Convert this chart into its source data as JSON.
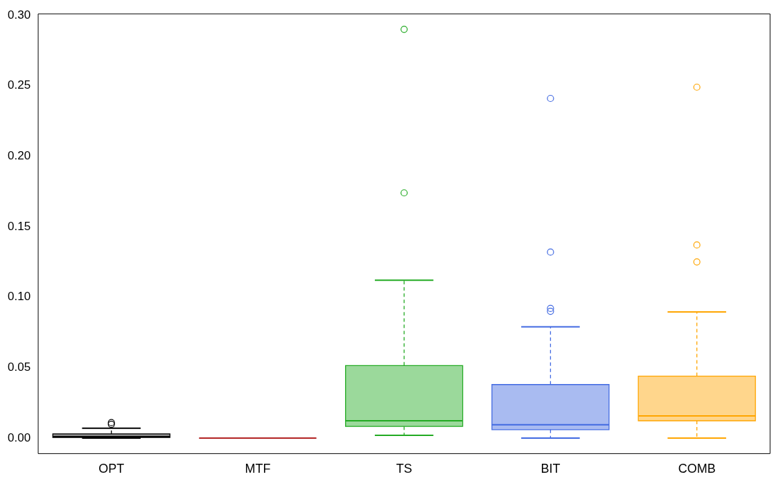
{
  "chart_data": {
    "type": "box",
    "categories": [
      "OPT",
      "MTF",
      "TS",
      "BIT",
      "COMB"
    ],
    "colors": [
      "#000000",
      "#b22222",
      "#22aa22",
      "#4169e1",
      "#ffa500"
    ],
    "boxes": [
      {
        "low": 0,
        "q1": 0.0005,
        "median": 0.001,
        "q3": 0.003,
        "high": 0.007,
        "outliers": [
          0.011,
          0.0098
        ]
      },
      {
        "low": 0,
        "q1": 0,
        "median": 0,
        "q3": 0,
        "high": 0
      },
      {
        "low": 0.002,
        "q1": 0.0083,
        "median": 0.0123,
        "q3": 0.0515,
        "high": 0.112,
        "outliers": [
          0.29,
          0.174
        ]
      },
      {
        "low": 0,
        "q1": 0.006,
        "median": 0.0095,
        "q3": 0.038,
        "high": 0.079,
        "outliers": [
          0.241,
          0.132,
          0.092,
          0.09
        ]
      },
      {
        "low": 0,
        "q1": 0.0123,
        "median": 0.0157,
        "q3": 0.044,
        "high": 0.0895,
        "outliers": [
          0.249,
          0.137,
          0.125
        ]
      }
    ],
    "ylim": [
      -0.011,
      0.301
    ],
    "yticks": [
      {
        "value": 0,
        "label": "0.00"
      },
      {
        "value": 0.05,
        "label": "0.05"
      },
      {
        "value": 0.1,
        "label": "0.10"
      },
      {
        "value": 0.15,
        "label": "0.15"
      },
      {
        "value": 0.2,
        "label": "0.20"
      },
      {
        "value": 0.25,
        "label": "0.25"
      },
      {
        "value": 0.3,
        "label": "0.30"
      }
    ],
    "grid": false,
    "legend": false
  }
}
